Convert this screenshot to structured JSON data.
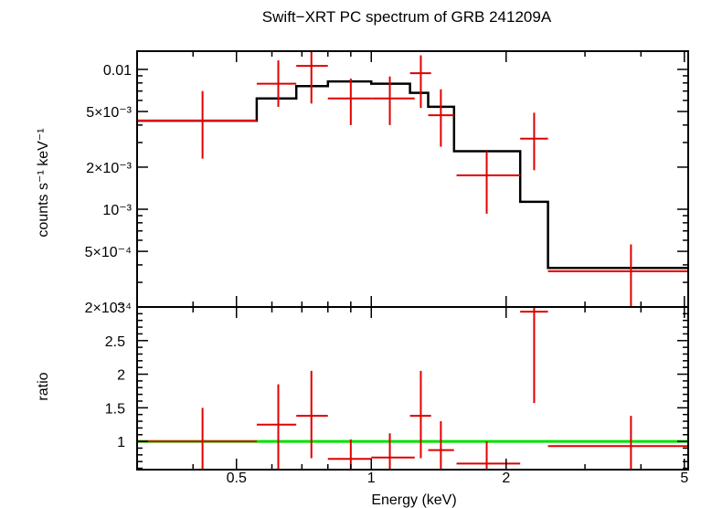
{
  "chart_data": [
    {
      "type": "line",
      "panel": "spectrum",
      "title": "Swift−XRT PC spectrum of GRB 241209A",
      "ylabel": "counts s⁻¹ keV⁻¹",
      "xlabel": "",
      "xscale": "log",
      "yscale": "log",
      "xlim": [
        0.3,
        5.1
      ],
      "ylim": [
        0.0002,
        0.0135
      ],
      "y_ticks": [
        {
          "value": 0.01,
          "label": "0.01"
        },
        {
          "value": 0.005,
          "label": "5×10⁻³"
        },
        {
          "value": 0.002,
          "label": "2×10⁻³"
        },
        {
          "value": 0.001,
          "label": "10⁻³"
        },
        {
          "value": 0.0005,
          "label": "5×10⁻⁴"
        },
        {
          "value": 0.0002,
          "label": "2×10⁻⁴"
        }
      ],
      "data_color": "#e00000",
      "model_color": "#000000",
      "data": [
        {
          "x": 0.42,
          "xlo": 0.3,
          "xhi": 0.555,
          "y": 0.0043,
          "ylo": 0.0023,
          "yhi": 0.007
        },
        {
          "x": 0.62,
          "xlo": 0.555,
          "xhi": 0.68,
          "y": 0.0079,
          "ylo": 0.0054,
          "yhi": 0.0116
        },
        {
          "x": 0.735,
          "xlo": 0.68,
          "xhi": 0.8,
          "y": 0.0106,
          "ylo": 0.0057,
          "yhi": 0.016
        },
        {
          "x": 0.9,
          "xlo": 0.8,
          "xhi": 1.0,
          "y": 0.0062,
          "ylo": 0.004,
          "yhi": 0.0086
        },
        {
          "x": 1.1,
          "xlo": 1.0,
          "xhi": 1.25,
          "y": 0.0062,
          "ylo": 0.004,
          "yhi": 0.0089
        },
        {
          "x": 1.29,
          "xlo": 1.22,
          "xhi": 1.36,
          "y": 0.0094,
          "ylo": 0.0053,
          "yhi": 0.0126
        },
        {
          "x": 1.43,
          "xlo": 1.34,
          "xhi": 1.53,
          "y": 0.0047,
          "ylo": 0.0028,
          "yhi": 0.0072
        },
        {
          "x": 1.81,
          "xlo": 1.55,
          "xhi": 2.15,
          "y": 0.00175,
          "ylo": 0.00093,
          "yhi": 0.0026
        },
        {
          "x": 2.31,
          "xlo": 2.15,
          "xhi": 2.48,
          "y": 0.0032,
          "ylo": 0.0019,
          "yhi": 0.0049
        },
        {
          "x": 3.8,
          "xlo": 2.48,
          "xhi": 5.1,
          "y": 0.00036,
          "ylo": 0.0002,
          "yhi": 0.00056
        }
      ],
      "model": [
        {
          "xlo": 0.3,
          "xhi": 0.555,
          "y": 0.0043
        },
        {
          "xlo": 0.555,
          "xhi": 0.68,
          "y": 0.0062
        },
        {
          "xlo": 0.68,
          "xhi": 0.8,
          "y": 0.0076
        },
        {
          "xlo": 0.8,
          "xhi": 1.0,
          "y": 0.0082
        },
        {
          "xlo": 1.0,
          "xhi": 1.22,
          "y": 0.0079
        },
        {
          "xlo": 1.22,
          "xhi": 1.34,
          "y": 0.0068
        },
        {
          "xlo": 1.34,
          "xhi": 1.53,
          "y": 0.0054
        },
        {
          "xlo": 1.53,
          "xhi": 2.15,
          "y": 0.0026
        },
        {
          "xlo": 2.15,
          "xhi": 2.48,
          "y": 0.00113
        },
        {
          "xlo": 2.48,
          "xhi": 5.1,
          "y": 0.00038
        }
      ]
    },
    {
      "type": "line",
      "panel": "ratio",
      "title": "",
      "xlabel": "Energy (keV)",
      "ylabel": "ratio",
      "xscale": "log",
      "yscale": "linear",
      "xlim": [
        0.3,
        5.1
      ],
      "ylim": [
        0.58,
        3.0
      ],
      "x_ticks": [
        {
          "value": 0.5,
          "label": "0.5"
        },
        {
          "value": 1,
          "label": "1"
        },
        {
          "value": 2,
          "label": "2"
        },
        {
          "value": 5,
          "label": "5"
        }
      ],
      "y_ticks": [
        {
          "value": 1,
          "label": "1"
        },
        {
          "value": 1.5,
          "label": "1.5"
        },
        {
          "value": 2,
          "label": "2"
        },
        {
          "value": 2.5,
          "label": "2.5"
        },
        {
          "value": 3,
          "label": "3"
        }
      ],
      "data_color": "#e00000",
      "reference_line": {
        "y": 1,
        "color": "#00e000"
      },
      "data": [
        {
          "x": 0.42,
          "xlo": 0.3,
          "xhi": 0.555,
          "y": 1.0,
          "ylo": 0.58,
          "yhi": 1.5
        },
        {
          "x": 0.62,
          "xlo": 0.555,
          "xhi": 0.68,
          "y": 1.25,
          "ylo": 0.58,
          "yhi": 1.85
        },
        {
          "x": 0.735,
          "xlo": 0.68,
          "xhi": 0.8,
          "y": 1.38,
          "ylo": 0.75,
          "yhi": 2.05
        },
        {
          "x": 0.9,
          "xlo": 0.8,
          "xhi": 1.0,
          "y": 0.74,
          "ylo": 0.58,
          "yhi": 1.03
        },
        {
          "x": 1.1,
          "xlo": 1.0,
          "xhi": 1.25,
          "y": 0.76,
          "ylo": 0.58,
          "yhi": 1.12
        },
        {
          "x": 1.29,
          "xlo": 1.22,
          "xhi": 1.36,
          "y": 1.38,
          "ylo": 0.75,
          "yhi": 2.05
        },
        {
          "x": 1.43,
          "xlo": 1.34,
          "xhi": 1.53,
          "y": 0.87,
          "ylo": 0.58,
          "yhi": 1.3
        },
        {
          "x": 1.81,
          "xlo": 1.55,
          "xhi": 2.15,
          "y": 0.67,
          "ylo": 0.58,
          "yhi": 1.0
        },
        {
          "x": 2.31,
          "xlo": 2.15,
          "xhi": 2.48,
          "y": 2.93,
          "ylo": 1.57,
          "yhi": 3.0
        },
        {
          "x": 3.8,
          "xlo": 2.48,
          "xhi": 5.1,
          "y": 0.93,
          "ylo": 0.58,
          "yhi": 1.38
        }
      ]
    }
  ]
}
